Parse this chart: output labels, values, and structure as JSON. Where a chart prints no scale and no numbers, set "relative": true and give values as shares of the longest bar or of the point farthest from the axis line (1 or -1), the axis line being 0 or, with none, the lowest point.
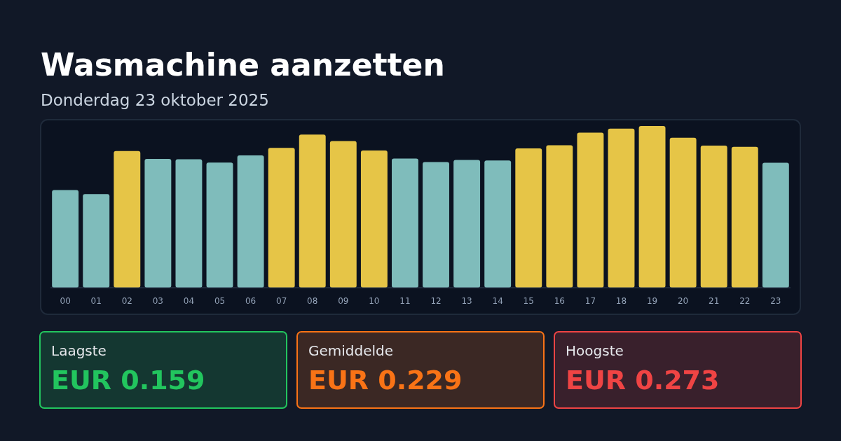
{
  "chart_data": [
    {
      "type": "bar",
      "title": "Wasmachine aanzetten",
      "subtitle": "Donderdag 23 oktober 2025",
      "relative": true,
      "categories": [
        "00",
        "01",
        "02",
        "03",
        "04",
        "05",
        "06",
        "07",
        "08",
        "09",
        "10",
        "11",
        "12",
        "13",
        "14",
        "15",
        "16",
        "17",
        "18",
        "19",
        "20",
        "21",
        "22",
        "23"
      ],
      "values": [
        0.604,
        0.579,
        0.845,
        0.797,
        0.794,
        0.774,
        0.818,
        0.865,
        0.947,
        0.907,
        0.848,
        0.799,
        0.777,
        0.79,
        0.787,
        0.861,
        0.881,
        0.959,
        0.984,
        1,
        0.928,
        0.879,
        0.871,
        0.773
      ],
      "colors": [
        "#7fbcbb",
        "#7fbcbb",
        "#e6c547",
        "#7fbcbb",
        "#7fbcbb",
        "#7fbcbb",
        "#7fbcbb",
        "#e6c547",
        "#e6c547",
        "#e6c547",
        "#e6c547",
        "#7fbcbb",
        "#7fbcbb",
        "#7fbcbb",
        "#7fbcbb",
        "#e6c547",
        "#e6c547",
        "#e6c547",
        "#e6c547",
        "#e6c547",
        "#e6c547",
        "#e6c547",
        "#e6c547",
        "#7fbcbb"
      ]
    },
    {
      "type": "other",
      "title": "Laagste",
      "annotations": [
        "EUR 0.159"
      ],
      "color": "#22c55e"
    },
    {
      "type": "other",
      "title": "Gemiddelde",
      "annotations": [
        "EUR 0.229"
      ],
      "color": "#f97316"
    },
    {
      "type": "other",
      "title": "Hoogste",
      "annotations": [
        "EUR 0.273"
      ],
      "color": "#ef4444"
    }
  ]
}
